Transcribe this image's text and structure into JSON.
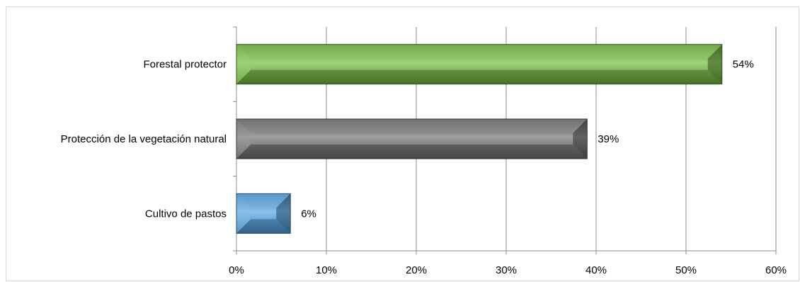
{
  "chart_data": {
    "type": "bar",
    "orientation": "horizontal",
    "categories": [
      "Forestal protector",
      "Protección de la vegetación natural",
      "Cultivo de pastos"
    ],
    "values": [
      54,
      39,
      6
    ],
    "data_labels": [
      "54%",
      "39%",
      "6%"
    ],
    "bar_colors": [
      "#70b83c",
      "#6e6e6e",
      "#4f9fdd"
    ],
    "x_ticks": [
      0,
      10,
      20,
      30,
      40,
      50,
      60
    ],
    "x_tick_labels": [
      "0%",
      "10%",
      "20%",
      "30%",
      "40%",
      "50%",
      "60%"
    ],
    "xlim": [
      0,
      60
    ],
    "grid": "vertical",
    "legend": "none",
    "bar_style": "beveled"
  }
}
